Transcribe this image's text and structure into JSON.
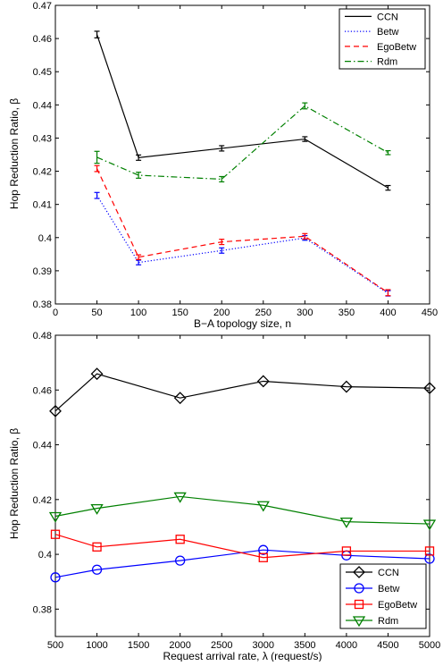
{
  "chart_data": [
    {
      "type": "line",
      "xlabel": "B−A topology size, n",
      "ylabel": "Hop Reduction Ratio,  β",
      "xlim": [
        0,
        450
      ],
      "ylim": [
        0.38,
        0.47
      ],
      "xticks": [
        0,
        50,
        100,
        150,
        200,
        250,
        300,
        350,
        400,
        450
      ],
      "yticks": [
        0.38,
        0.39,
        0.4,
        0.41,
        0.42,
        0.43,
        0.44,
        0.45,
        0.46,
        0.47
      ],
      "xtick_labels": [
        "0",
        "50",
        "100",
        "150",
        "200",
        "250",
        "300",
        "350",
        "400",
        "450"
      ],
      "ytick_labels": [
        "0.38",
        "0.39",
        "0.4",
        "0.41",
        "0.42",
        "0.43",
        "0.44",
        "0.45",
        "0.46",
        "0.47"
      ],
      "grid": false,
      "legend_position": "top-right",
      "x": [
        50,
        100,
        200,
        300,
        400
      ],
      "series": [
        {
          "name": "CCN",
          "color": "#000000",
          "dash": "solid",
          "marker": "none",
          "values": [
            0.4612,
            0.4241,
            0.4269,
            0.4297,
            0.415
          ],
          "errors": [
            0.001,
            0.0008,
            0.0008,
            0.0007,
            0.0007
          ]
        },
        {
          "name": "Betw",
          "color": "#0000ff",
          "dash": "dotted",
          "marker": "none",
          "values": [
            0.4127,
            0.3925,
            0.3961,
            0.3999,
            0.3832
          ],
          "errors": [
            0.0009,
            0.0007,
            0.0008,
            0.0007,
            0.0008
          ]
        },
        {
          "name": "EgoBetw",
          "color": "#ff0000",
          "dash": "dashed",
          "marker": "none",
          "values": [
            0.4208,
            0.3941,
            0.3987,
            0.4004,
            0.3834
          ],
          "errors": [
            0.0009,
            0.0007,
            0.0008,
            0.0008,
            0.0009
          ]
        },
        {
          "name": "Rdm",
          "color": "#008000",
          "dash": "dashdot",
          "marker": "none",
          "values": [
            0.4242,
            0.4188,
            0.4176,
            0.4397,
            0.4256
          ],
          "errors": [
            0.0018,
            0.0009,
            0.0008,
            0.0009,
            0.0006
          ]
        }
      ]
    },
    {
      "type": "line",
      "xlabel": "Request arrival rate,  λ (request/s)",
      "ylabel": "Hop Reduction Ratio,  β",
      "xlim": [
        500,
        5000
      ],
      "ylim": [
        0.37,
        0.48
      ],
      "xticks": [
        500,
        1000,
        1500,
        2000,
        2500,
        3000,
        3500,
        4000,
        4500,
        5000
      ],
      "yticks": [
        0.38,
        0.4,
        0.42,
        0.44,
        0.46,
        0.48
      ],
      "xtick_labels": [
        "500",
        "1000",
        "1500",
        "2000",
        "2500",
        "3000",
        "3500",
        "4000",
        "4500",
        "5000"
      ],
      "ytick_labels": [
        "0.38",
        "0.4",
        "0.42",
        "0.44",
        "0.46",
        "0.48"
      ],
      "grid": false,
      "legend_position": "bottom-right",
      "x": [
        500,
        1000,
        2000,
        3000,
        4000,
        5000
      ],
      "series": [
        {
          "name": "CCN",
          "color": "#000000",
          "dash": "solid",
          "marker": "diamond",
          "values": [
            0.4523,
            0.4659,
            0.4571,
            0.4632,
            0.4612,
            0.4607
          ]
        },
        {
          "name": "Betw",
          "color": "#0000ff",
          "dash": "solid",
          "marker": "circle",
          "values": [
            0.3916,
            0.3944,
            0.3977,
            0.4016,
            0.3996,
            0.3984
          ]
        },
        {
          "name": "EgoBetw",
          "color": "#ff0000",
          "dash": "solid",
          "marker": "square",
          "values": [
            0.4073,
            0.4027,
            0.4055,
            0.3988,
            0.4012,
            0.4012
          ]
        },
        {
          "name": "Rdm",
          "color": "#008000",
          "dash": "solid",
          "marker": "triangle-down",
          "values": [
            0.4139,
            0.4168,
            0.4211,
            0.4179,
            0.4119,
            0.4111
          ]
        }
      ]
    }
  ]
}
